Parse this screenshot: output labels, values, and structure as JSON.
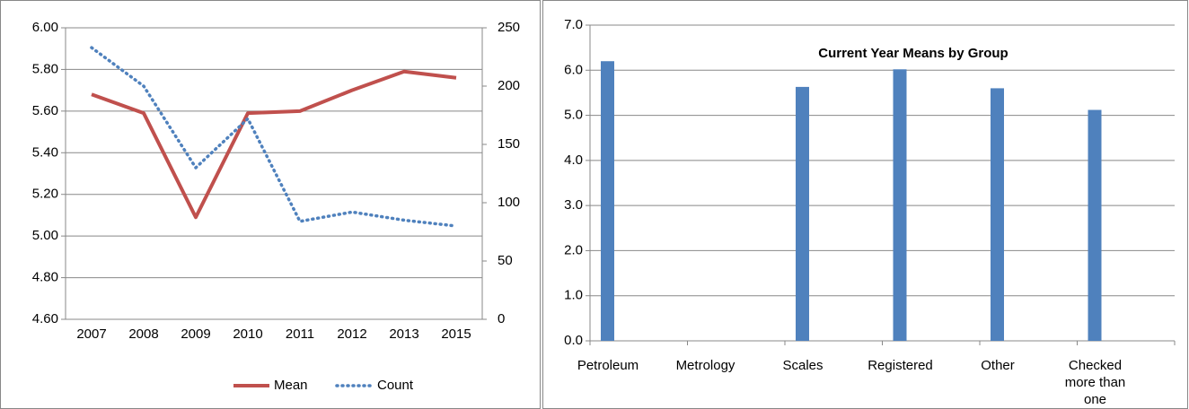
{
  "chart_data": [
    {
      "type": "line",
      "categories": [
        "2007",
        "2008",
        "2009",
        "2010",
        "2011",
        "2012",
        "2013",
        "2015"
      ],
      "series": [
        {
          "name": "Mean",
          "color": "#c0504d",
          "values": [
            5.68,
            5.59,
            5.09,
            5.59,
            5.6,
            5.7,
            5.79,
            5.76
          ]
        },
        {
          "name": "Count",
          "color": "#4f81bd",
          "axis": "y2",
          "values": [
            233,
            200,
            130,
            172,
            84,
            92,
            85,
            80
          ]
        }
      ],
      "ylim": [
        4.6,
        6.0
      ],
      "yticks": [
        {
          "value": 4.6,
          "label": "4.60"
        },
        {
          "value": 4.8,
          "label": "4.80"
        },
        {
          "value": 5.0,
          "label": "5.00"
        },
        {
          "value": 5.2,
          "label": "5.20"
        },
        {
          "value": 5.4,
          "label": "5.40"
        },
        {
          "value": 5.6,
          "label": "5.60"
        },
        {
          "value": 5.8,
          "label": "5.80"
        },
        {
          "value": 6.0,
          "label": "6.00"
        }
      ],
      "y2lim": [
        0,
        250
      ],
      "y2ticks": [
        0,
        50,
        100,
        150,
        200,
        250
      ],
      "grid": true,
      "legend": "bottom"
    },
    {
      "type": "bar",
      "title": "Current Year Means by Group",
      "categories": [
        "Petroleum",
        "Metrology",
        "Scales",
        "Registered",
        "Other",
        "Checked more than one"
      ],
      "values": [
        6.2,
        null,
        5.63,
        6.02,
        5.6,
        5.12
      ],
      "color": "#4f81bd",
      "ylim": [
        0,
        7
      ],
      "yticks": [
        {
          "value": 0,
          "label": "0.0"
        },
        {
          "value": 1,
          "label": "1.0"
        },
        {
          "value": 2,
          "label": "2.0"
        },
        {
          "value": 3,
          "label": "3.0"
        },
        {
          "value": 4,
          "label": "4.0"
        },
        {
          "value": 5,
          "label": "5.0"
        },
        {
          "value": 6,
          "label": "6.0"
        },
        {
          "value": 7,
          "label": "7.0"
        }
      ],
      "grid": true
    }
  ]
}
